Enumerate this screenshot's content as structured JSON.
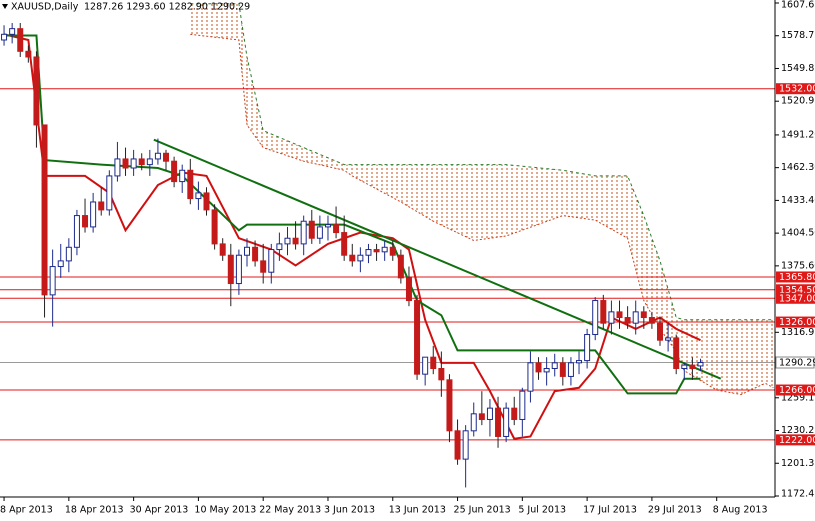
{
  "chart_data": {
    "type": "candlestick",
    "symbol": "XAUUSD,Daily",
    "ohlc_header": "1287.26 1293.60 1282.90 1290.29",
    "xlim": [
      -0.5,
      95.2
    ],
    "ylim": [
      1172.45,
      1607.65
    ],
    "yticks": [
      {
        "value": 1607.65,
        "label": "1607.65"
      },
      {
        "value": 1578.75,
        "label": "1578.75"
      },
      {
        "value": 1549.85,
        "label": "1549.85"
      },
      {
        "value": 1520.95,
        "label": "1520.95"
      },
      {
        "value": 1491.2,
        "label": "1491.20"
      },
      {
        "value": 1462.3,
        "label": "1462.30"
      },
      {
        "value": 1433.4,
        "label": "1433.40"
      },
      {
        "value": 1404.5,
        "label": "1404.50"
      },
      {
        "value": 1375.6,
        "label": "1375.60"
      },
      {
        "value": 1316.95,
        "label": "1316.95"
      },
      {
        "value": 1259.15,
        "label": "1259.15"
      },
      {
        "value": 1230.25,
        "label": "1230.25"
      },
      {
        "value": 1201.35,
        "label": "1201.35"
      },
      {
        "value": 1172.45,
        "label": "1172.45"
      }
    ],
    "xticks": [
      {
        "value": 0,
        "label": "8 Apr 2013"
      },
      {
        "value": 8,
        "label": "18 Apr 2013"
      },
      {
        "value": 16,
        "label": "30 Apr 2013"
      },
      {
        "value": 24,
        "label": "10 May 2013"
      },
      {
        "value": 32,
        "label": "22 May 2013"
      },
      {
        "value": 40,
        "label": "3 Jun 2013"
      },
      {
        "value": 48,
        "label": "13 Jun 2013"
      },
      {
        "value": 56,
        "label": "25 Jun 2013"
      },
      {
        "value": 64,
        "label": "5 Jul 2013"
      },
      {
        "value": 72,
        "label": "17 Jul 2013"
      },
      {
        "value": 80,
        "label": "29 Jul 2013"
      },
      {
        "value": 88,
        "label": "8 Aug 2013"
      }
    ],
    "bull_color": "#1c2a8c",
    "bear_color": "#c41a1a",
    "candles": {
      "open": [
        1575,
        1580,
        1585,
        1565,
        1560,
        1500,
        1350,
        1375,
        1380,
        1392,
        1420,
        1410,
        1432,
        1425,
        1455,
        1470,
        1462,
        1470,
        1465,
        1470,
        1475,
        1468,
        1450,
        1460,
        1435,
        1440,
        1425,
        1395,
        1385,
        1360,
        1385,
        1392,
        1380,
        1370,
        1390,
        1395,
        1400,
        1395,
        1415,
        1400,
        1410,
        1412,
        1405,
        1385,
        1380,
        1385,
        1390,
        1388,
        1392,
        1385,
        1365,
        1345,
        1280,
        1295,
        1285,
        1275,
        1230,
        1205,
        1230,
        1245,
        1240,
        1250,
        1225,
        1250,
        1240,
        1265,
        1290,
        1282,
        1285,
        1290,
        1278,
        1290,
        1292,
        1315,
        1345,
        1325,
        1335,
        1330,
        1325,
        1335,
        1330,
        1325,
        1310,
        1312,
        1285,
        1288,
        1287.26
      ],
      "high": [
        1588,
        1590,
        1590,
        1570,
        1565,
        1500,
        1390,
        1395,
        1400,
        1425,
        1435,
        1440,
        1445,
        1460,
        1485,
        1480,
        1478,
        1475,
        1478,
        1488,
        1478,
        1472,
        1465,
        1470,
        1450,
        1445,
        1430,
        1400,
        1395,
        1390,
        1400,
        1398,
        1395,
        1395,
        1405,
        1410,
        1415,
        1420,
        1425,
        1420,
        1420,
        1428,
        1420,
        1395,
        1392,
        1395,
        1395,
        1398,
        1398,
        1390,
        1375,
        1350,
        1295,
        1305,
        1300,
        1280,
        1240,
        1235,
        1255,
        1265,
        1258,
        1260,
        1255,
        1260,
        1268,
        1300,
        1295,
        1295,
        1298,
        1295,
        1295,
        1300,
        1320,
        1348,
        1350,
        1345,
        1345,
        1340,
        1345,
        1340,
        1335,
        1330,
        1325,
        1315,
        1290,
        1295,
        1293.6
      ],
      "low": [
        1570,
        1572,
        1560,
        1555,
        1480,
        1330,
        1322,
        1365,
        1370,
        1385,
        1405,
        1405,
        1420,
        1420,
        1450,
        1455,
        1455,
        1460,
        1455,
        1465,
        1460,
        1445,
        1440,
        1430,
        1425,
        1420,
        1390,
        1380,
        1340,
        1350,
        1375,
        1375,
        1360,
        1360,
        1380,
        1385,
        1390,
        1385,
        1395,
        1395,
        1398,
        1400,
        1380,
        1375,
        1370,
        1378,
        1380,
        1380,
        1380,
        1360,
        1340,
        1275,
        1270,
        1280,
        1260,
        1220,
        1200,
        1180,
        1225,
        1235,
        1225,
        1215,
        1220,
        1235,
        1225,
        1255,
        1275,
        1270,
        1278,
        1270,
        1270,
        1280,
        1285,
        1310,
        1320,
        1315,
        1320,
        1320,
        1315,
        1320,
        1320,
        1305,
        1300,
        1280,
        1275,
        1275,
        1282.9
      ],
      "close": [
        1580,
        1585,
        1565,
        1560,
        1500,
        1350,
        1375,
        1380,
        1392,
        1420,
        1410,
        1432,
        1425,
        1455,
        1470,
        1462,
        1470,
        1465,
        1470,
        1475,
        1468,
        1450,
        1460,
        1435,
        1440,
        1425,
        1395,
        1385,
        1360,
        1385,
        1392,
        1380,
        1370,
        1390,
        1395,
        1400,
        1395,
        1415,
        1400,
        1410,
        1412,
        1405,
        1385,
        1380,
        1385,
        1390,
        1388,
        1392,
        1385,
        1365,
        1345,
        1280,
        1295,
        1285,
        1275,
        1230,
        1205,
        1230,
        1245,
        1240,
        1250,
        1225,
        1250,
        1240,
        1265,
        1290,
        1282,
        1285,
        1290,
        1278,
        1290,
        1292,
        1315,
        1345,
        1325,
        1335,
        1330,
        1325,
        1335,
        1330,
        1325,
        1310,
        1312,
        1285,
        1288,
        1285,
        1290.29
      ]
    },
    "lines": [
      {
        "color": "#d01010",
        "x": [
          0,
          3,
          5,
          10,
          13,
          15,
          19,
          22,
          25,
          29,
          33,
          36,
          40,
          44,
          48,
          50,
          52,
          54,
          58,
          60,
          63,
          65,
          68,
          71,
          73,
          75,
          78,
          81,
          83,
          86
        ],
        "values": [
          1580,
          1575,
          1455,
          1455,
          1440,
          1407,
          1447,
          1458,
          1455,
          1400,
          1390,
          1376,
          1395,
          1405,
          1400,
          1390,
          1328,
          1290,
          1290,
          1265,
          1223,
          1225,
          1265,
          1268,
          1285,
          1330,
          1320,
          1330,
          1320,
          1310
        ]
      },
      {
        "color": "#107010",
        "x": [
          0,
          4,
          5,
          12,
          19,
          22,
          29,
          30,
          42,
          48,
          51,
          54,
          56,
          73,
          77,
          83,
          84,
          86
        ],
        "values": [
          1579,
          1579,
          1469,
          1465,
          1462,
          1455,
          1407,
          1412,
          1412,
          1395,
          1345,
          1332,
          1301,
          1301,
          1263,
          1263,
          1276,
          1276
        ]
      },
      {
        "color": "#107010",
        "x": [
          18.5,
          88.5
        ],
        "values": [
          1487,
          1276
        ]
      }
    ],
    "cloud": {
      "x": [
        23,
        29,
        30,
        32,
        37,
        42,
        43,
        49,
        53,
        58,
        62,
        69,
        73,
        77,
        79,
        81,
        83,
        84,
        88,
        91,
        94,
        95
      ],
      "upper": [
        1607,
        1607,
        1560,
        1495,
        1480,
        1465,
        1465,
        1465,
        1465,
        1465,
        1465,
        1460,
        1455,
        1455,
        1420,
        1380,
        1330,
        1328,
        1328,
        1328,
        1328,
        1328
      ],
      "lower": [
        1580,
        1575,
        1500,
        1480,
        1468,
        1460,
        1455,
        1432,
        1415,
        1398,
        1402,
        1420,
        1416,
        1400,
        1345,
        1320,
        1300,
        1283,
        1266,
        1262,
        1272,
        1268
      ],
      "upper_color": "#2a7a2a",
      "lower_color": "#c8401a",
      "hatch_color": "#c8501a"
    },
    "levels": [
      {
        "value": 1532,
        "label": "1532.00"
      },
      {
        "value": 1365.8,
        "label": "1365.80"
      },
      {
        "value": 1354.5,
        "label": "1354.50"
      },
      {
        "value": 1347,
        "label": "1347.00"
      },
      {
        "value": 1326,
        "label": "1326.00"
      },
      {
        "value": 1266,
        "label": "1266.00"
      },
      {
        "value": 1222,
        "label": "1222.00"
      }
    ],
    "level_color": "#e01818",
    "current_price": {
      "value": 1290.29,
      "label": "1290.29"
    }
  }
}
